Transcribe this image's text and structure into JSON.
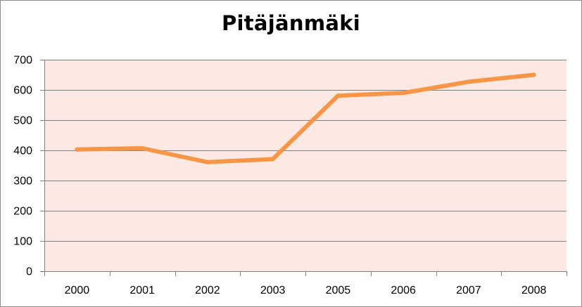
{
  "chart_data": {
    "type": "line",
    "title": "Pitäjänmäki",
    "xlabel": "",
    "ylabel": "",
    "categories": [
      "2000",
      "2001",
      "2002",
      "2003",
      "2005",
      "2006",
      "2007",
      "2008"
    ],
    "series": [
      {
        "values": [
          403,
          407,
          361,
          371,
          581,
          590,
          627,
          650
        ]
      }
    ],
    "ylim": [
      0,
      700
    ],
    "yticks": [
      0,
      100,
      200,
      300,
      400,
      500,
      600,
      700
    ],
    "grid": "horizontal",
    "legend": "none",
    "colors": {
      "plot_background": "#fce9e4",
      "line": "#f79646",
      "gridline": "#7f7f7f",
      "axis": "#7f7f7f"
    }
  }
}
